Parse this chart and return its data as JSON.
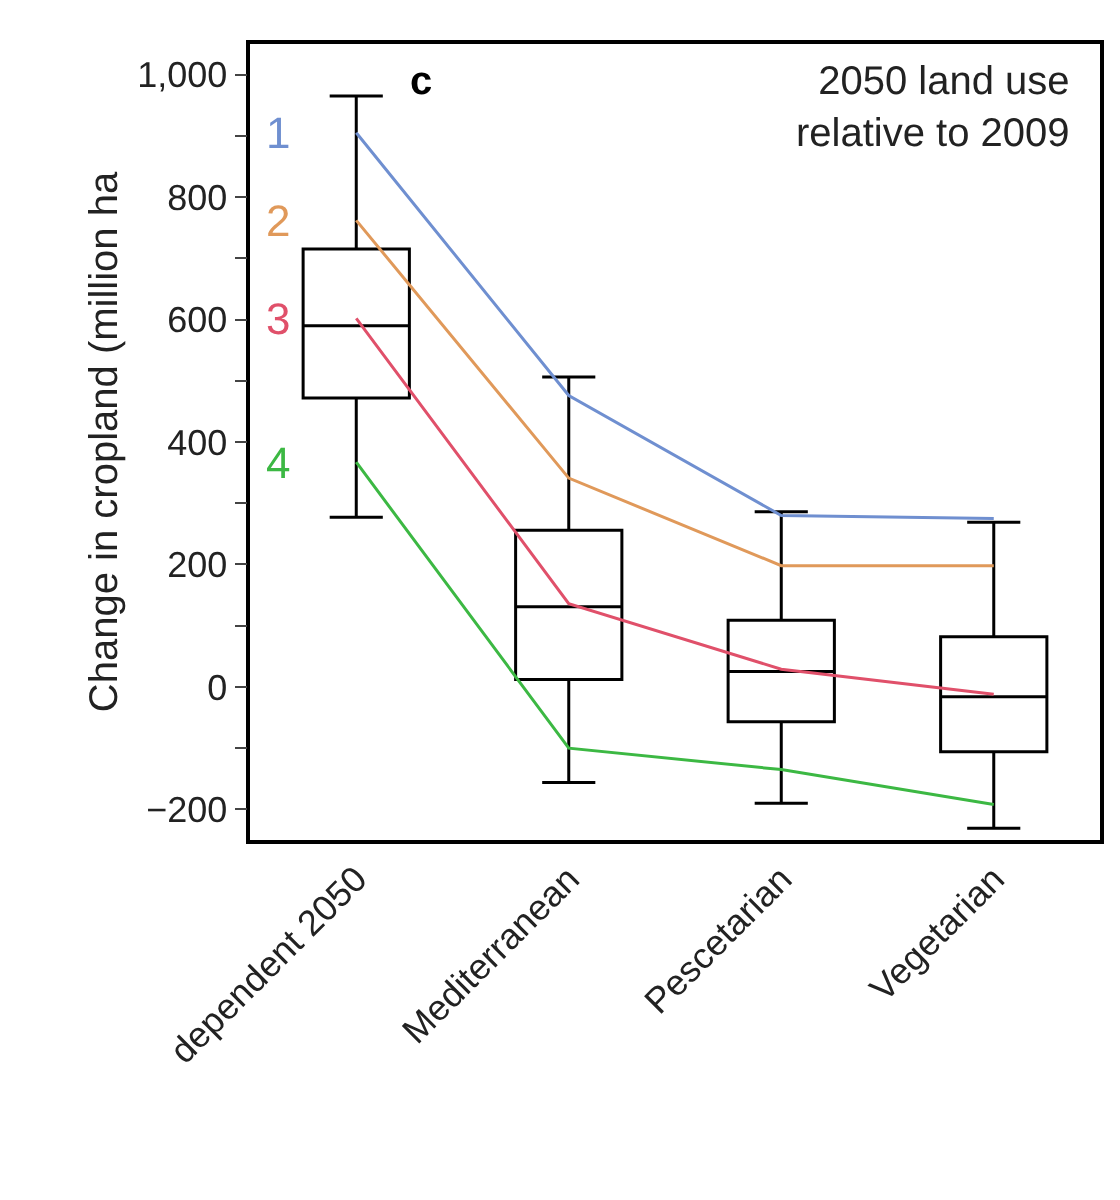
{
  "chart_data": {
    "type": "box",
    "title": "c",
    "ylabel": "Change in cropland (million ha",
    "annotations": [
      "2050 land use\nrelative to 2009"
    ],
    "categories": [
      "dependent 2050",
      "Mediterranean",
      "Pescetarian",
      "Vegetarian"
    ],
    "boxes": [
      {
        "low": 277,
        "q1": 472,
        "median": 590,
        "q3": 715,
        "high": 965
      },
      {
        "low": -156,
        "q1": 12,
        "median": 131,
        "q3": 256,
        "high": 506
      },
      {
        "low": -190,
        "q1": -57,
        "median": 25,
        "q3": 109,
        "high": 286
      },
      {
        "low": -231,
        "q1": -106,
        "median": -16,
        "q3": 82,
        "high": 269
      }
    ],
    "series": [
      {
        "type": "line",
        "name": "1",
        "color": "#6f8fd0",
        "values": [
          905,
          476,
          280,
          275
        ]
      },
      {
        "type": "line",
        "name": "2",
        "color": "#e0995a",
        "values": [
          762,
          341,
          198,
          198
        ]
      },
      {
        "type": "line",
        "name": "3",
        "color": "#e0506a",
        "values": [
          602,
          136,
          29,
          -12
        ]
      },
      {
        "type": "line",
        "name": "4",
        "color": "#3cb843",
        "values": [
          367,
          -100,
          -135,
          -192
        ]
      }
    ],
    "ylim": [
      -250,
      1050
    ],
    "yticks": [
      {
        "value": -200,
        "label": "−200"
      },
      {
        "value": -100,
        "label": null
      },
      0,
      {
        "value": 100,
        "label": null
      },
      200,
      {
        "value": 300,
        "label": null
      },
      400,
      {
        "value": 500,
        "label": null
      },
      600,
      {
        "value": 700,
        "label": null
      },
      800,
      {
        "value": 900,
        "label": null
      },
      {
        "value": 1000,
        "label": "1,000"
      }
    ],
    "grid": false,
    "legend": false,
    "marker": "none",
    "line_style": "solid"
  }
}
